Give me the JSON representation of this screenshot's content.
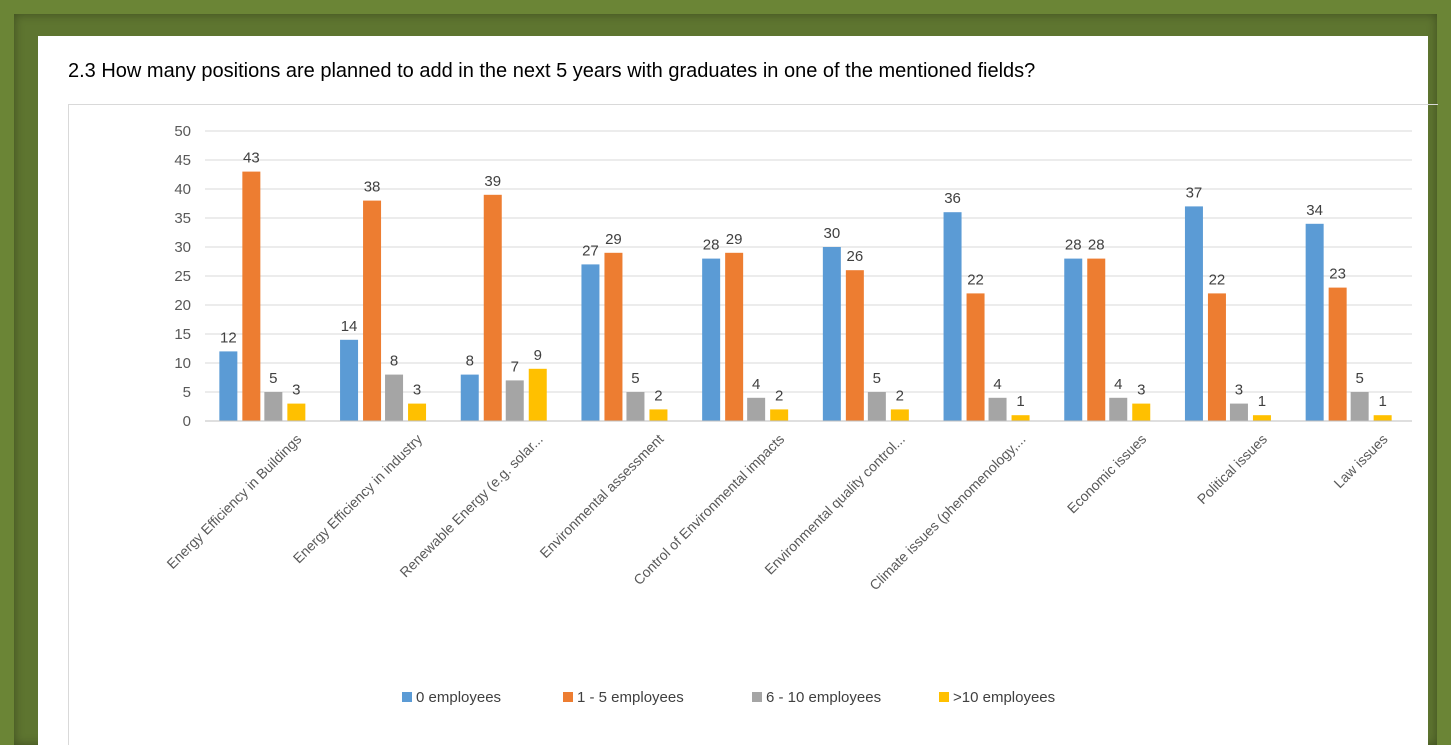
{
  "question": "2.3 How many positions are planned to add in the next 5 years with graduates in one of the mentioned fields?",
  "chart_data": {
    "type": "bar",
    "categories": [
      "Energy Efficiency in Buildings",
      "Energy Efficiency in industry",
      "Renewable Energy (e.g. solar...",
      "Environmental assessment",
      "Control of Environmental impacts",
      "Environmental quality control...",
      "Climate issues (phenomenology,...",
      "Economic issues",
      "Political issues",
      "Law issues"
    ],
    "series": [
      {
        "name": "0 employees",
        "color": "#5b9bd5",
        "values": [
          12,
          14,
          8,
          27,
          28,
          30,
          36,
          28,
          37,
          34
        ]
      },
      {
        "name": "1 - 5 employees",
        "color": "#ed7d31",
        "values": [
          43,
          38,
          39,
          29,
          29,
          26,
          22,
          28,
          22,
          23
        ]
      },
      {
        "name": "6 - 10 employees",
        "color": "#a5a5a5",
        "values": [
          5,
          8,
          7,
          5,
          4,
          5,
          4,
          4,
          3,
          5
        ]
      },
      {
        "name": ">10 employees",
        "color": "#ffc000",
        "values": [
          3,
          3,
          9,
          2,
          2,
          2,
          1,
          3,
          1,
          1
        ]
      }
    ],
    "ylim": [
      0,
      50
    ],
    "yticks": [
      0,
      5,
      10,
      15,
      20,
      25,
      30,
      35,
      40,
      45,
      50
    ],
    "grid": true,
    "legend_position": "bottom"
  }
}
